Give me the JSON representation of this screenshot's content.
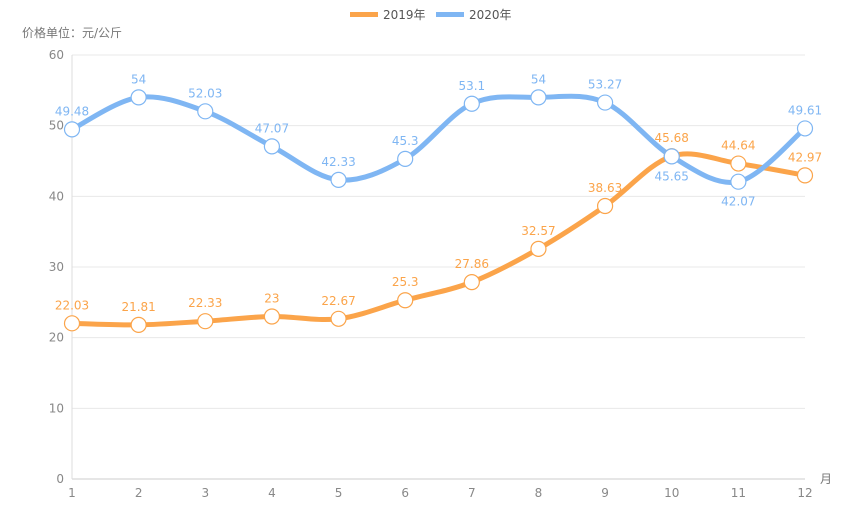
{
  "chart_data": {
    "type": "line",
    "unit_label": "价格单位：元/公斤",
    "x_unit": "月",
    "categories": [
      "1",
      "2",
      "3",
      "4",
      "5",
      "6",
      "7",
      "8",
      "9",
      "10",
      "11",
      "12"
    ],
    "ylim": [
      0,
      60
    ],
    "yticks": [
      "0",
      "10",
      "20",
      "30",
      "40",
      "50",
      "60"
    ],
    "grid": true,
    "legend_position": "top-center",
    "series": [
      {
        "name": "2019年",
        "color": "#fba44a",
        "values": [
          22.03,
          21.81,
          22.33,
          23,
          22.67,
          25.3,
          27.86,
          32.57,
          38.63,
          45.68,
          44.64,
          42.97
        ]
      },
      {
        "name": "2020年",
        "color": "#7fb6f3",
        "values": [
          49.48,
          54,
          52.03,
          47.07,
          42.33,
          45.3,
          53.1,
          54,
          53.27,
          45.65,
          42.07,
          49.61
        ]
      }
    ]
  }
}
